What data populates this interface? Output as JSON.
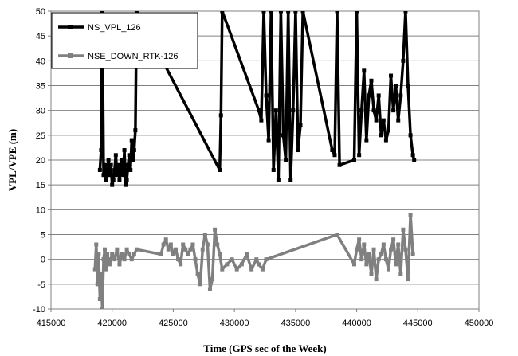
{
  "chart_data": {
    "type": "line",
    "xlabel": "Time (GPS sec of the Week)",
    "ylabel": "VPL/VPE (m)",
    "xlim": [
      415000,
      450000
    ],
    "ylim": [
      -10,
      50
    ],
    "xticks": [
      415000,
      420000,
      425000,
      430000,
      435000,
      440000,
      445000,
      450000
    ],
    "yticks": [
      -10,
      -5,
      0,
      5,
      10,
      15,
      20,
      25,
      30,
      35,
      40,
      45,
      50
    ],
    "grid": "horizontal",
    "legend_position": "top-left",
    "series": [
      {
        "name": "NS_VPL_126",
        "color": "#000000",
        "marker": "square",
        "x": [
          419000,
          419100,
          419200,
          419300,
          419400,
          419500,
          419600,
          419700,
          419800,
          419900,
          420000,
          420100,
          420200,
          420300,
          420400,
          420500,
          420600,
          420700,
          420800,
          420900,
          421000,
          421100,
          421200,
          421300,
          421400,
          421500,
          421600,
          421700,
          421800,
          421900,
          422000,
          428800,
          428900,
          429000,
          432000,
          432200,
          432400,
          432600,
          432800,
          433000,
          433200,
          433400,
          433600,
          433800,
          434000,
          434200,
          434400,
          434600,
          434800,
          435000,
          435200,
          435400,
          435600,
          438000,
          438200,
          438400,
          438600,
          439800,
          440000,
          440200,
          440400,
          440600,
          440800,
          441000,
          441200,
          441400,
          441600,
          441800,
          442000,
          442200,
          442400,
          442600,
          442800,
          443000,
          443200,
          443400,
          443600,
          443800,
          444000,
          444200,
          444400,
          444600,
          444700
        ],
        "y": [
          18,
          22,
          50,
          17,
          19,
          16,
          18,
          20,
          17,
          19,
          15,
          16,
          18,
          21,
          17,
          19,
          16,
          18,
          20,
          17,
          22,
          15,
          16,
          19,
          21,
          18,
          24,
          20,
          22,
          26,
          50,
          18,
          29,
          50,
          30,
          28,
          50,
          33,
          24,
          50,
          18,
          30,
          16,
          50,
          25,
          20,
          50,
          16,
          30,
          50,
          22,
          27,
          50,
          22,
          21,
          50,
          19,
          20,
          50,
          21,
          30,
          38,
          24,
          33,
          36,
          30,
          28,
          33,
          25,
          28,
          24,
          26,
          37,
          30,
          35,
          28,
          33,
          40,
          50,
          35,
          25,
          21,
          20
        ]
      },
      {
        "name": "NSE_DOWN_RTK-126",
        "color": "#808080",
        "marker": "square",
        "x": [
          418600,
          418700,
          418800,
          418900,
          419000,
          419100,
          419200,
          419300,
          419400,
          419500,
          419600,
          419700,
          419800,
          420000,
          420200,
          420400,
          420600,
          420800,
          421000,
          421200,
          421400,
          421600,
          421800,
          422000,
          424000,
          424200,
          424400,
          424600,
          424800,
          425000,
          425200,
          425400,
          425600,
          425800,
          426000,
          426200,
          426400,
          426600,
          426800,
          427000,
          427200,
          427400,
          427600,
          427800,
          428000,
          428200,
          428400,
          428600,
          428800,
          429000,
          429400,
          429800,
          430200,
          430600,
          431000,
          431400,
          431800,
          432000,
          432300,
          432600,
          438400,
          439800,
          440000,
          440200,
          440400,
          440600,
          440800,
          441000,
          441200,
          441400,
          441600,
          441800,
          442000,
          442200,
          442400,
          442600,
          442800,
          443000,
          443200,
          443400,
          443600,
          443800,
          444000,
          444200,
          444400,
          444600
        ],
        "y": [
          -2,
          3,
          -5,
          1,
          -8,
          -3,
          -10,
          0,
          2,
          -2,
          1,
          0,
          -1,
          1,
          0,
          2,
          -1,
          1,
          0,
          2,
          1,
          0,
          1,
          2,
          1,
          3,
          4,
          2,
          3,
          1,
          2,
          0,
          -1,
          3,
          2,
          1,
          2,
          3,
          0,
          -3,
          -5,
          2,
          5,
          3,
          -6,
          -4,
          6,
          3,
          1,
          -2,
          -1,
          0,
          -2,
          -1,
          1,
          -2,
          0,
          -1,
          -2,
          0,
          5,
          -1,
          2,
          4,
          0,
          3,
          -1,
          1,
          -3,
          2,
          -4,
          0,
          1,
          3,
          0,
          -2,
          2,
          4,
          -1,
          3,
          -3,
          6,
          2,
          -4,
          9,
          1
        ]
      }
    ]
  }
}
